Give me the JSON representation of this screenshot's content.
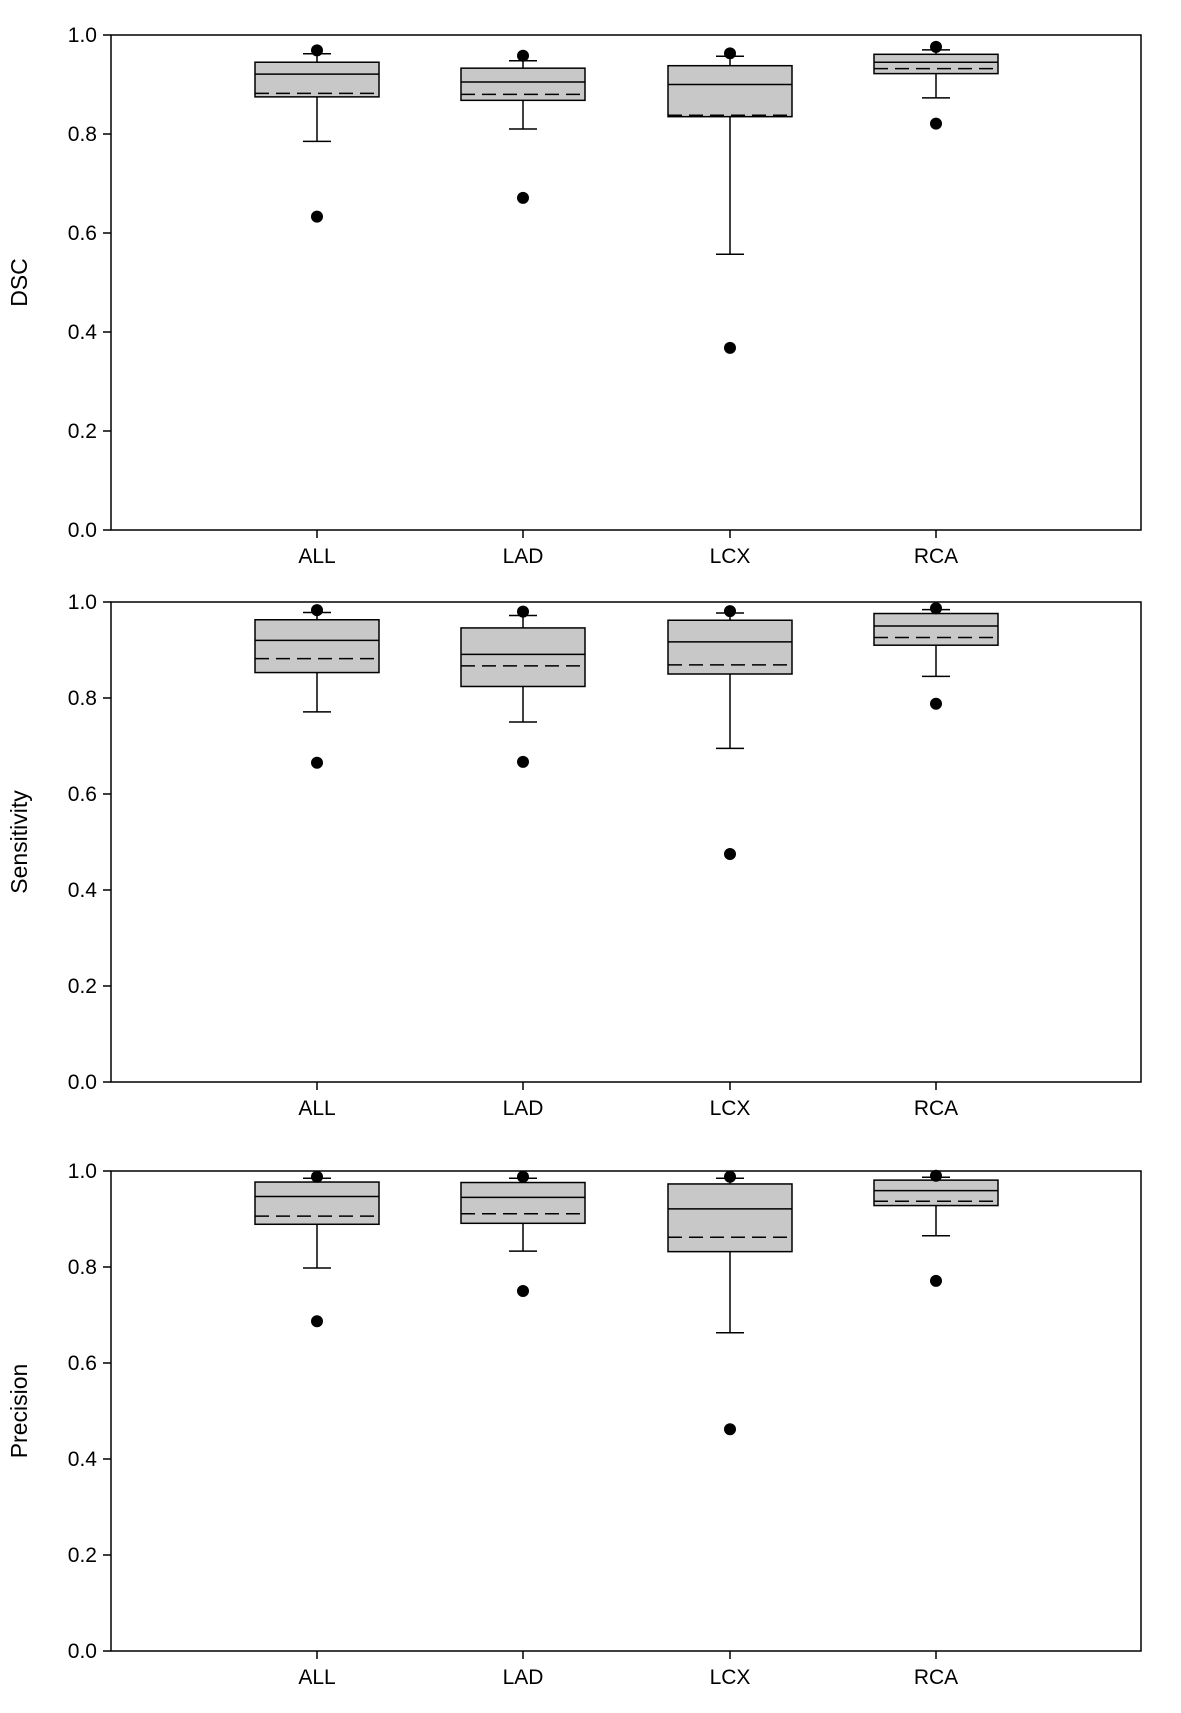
{
  "chart_data": [
    {
      "type": "box",
      "ylabel": "DSC",
      "ylim": [
        0.0,
        1.0
      ],
      "yticks": [
        "0.0",
        "0.2",
        "0.4",
        "0.6",
        "0.8",
        "1.0"
      ],
      "categories": [
        "ALL",
        "LAD",
        "LCX",
        "RCA"
      ],
      "boxes": [
        {
          "category": "ALL",
          "whisker_low": 0.785,
          "q1": 0.875,
          "median": 0.921,
          "mean": 0.882,
          "q3": 0.945,
          "whisker_high": 0.962,
          "outliers": [
            0.633,
            0.969
          ]
        },
        {
          "category": "LAD",
          "whisker_low": 0.81,
          "q1": 0.868,
          "median": 0.905,
          "mean": 0.88,
          "q3": 0.933,
          "whisker_high": 0.948,
          "outliers": [
            0.671,
            0.958
          ]
        },
        {
          "category": "LCX",
          "whisker_low": 0.557,
          "q1": 0.835,
          "median": 0.9,
          "mean": 0.838,
          "q3": 0.938,
          "whisker_high": 0.957,
          "outliers": [
            0.368,
            0.963
          ]
        },
        {
          "category": "RCA",
          "whisker_low": 0.873,
          "q1": 0.922,
          "median": 0.945,
          "mean": 0.932,
          "q3": 0.961,
          "whisker_high": 0.97,
          "outliers": [
            0.821,
            0.976
          ]
        }
      ]
    },
    {
      "type": "box",
      "ylabel": "Sensitivity",
      "ylim": [
        0.0,
        1.0
      ],
      "yticks": [
        "0.0",
        "0.2",
        "0.4",
        "0.6",
        "0.8",
        "1.0"
      ],
      "categories": [
        "ALL",
        "LAD",
        "LCX",
        "RCA"
      ],
      "boxes": [
        {
          "category": "ALL",
          "whisker_low": 0.771,
          "q1": 0.853,
          "median": 0.92,
          "mean": 0.882,
          "q3": 0.963,
          "whisker_high": 0.978,
          "outliers": [
            0.665,
            0.983
          ]
        },
        {
          "category": "LAD",
          "whisker_low": 0.75,
          "q1": 0.824,
          "median": 0.891,
          "mean": 0.867,
          "q3": 0.946,
          "whisker_high": 0.972,
          "outliers": [
            0.667,
            0.98
          ]
        },
        {
          "category": "LCX",
          "whisker_low": 0.695,
          "q1": 0.85,
          "median": 0.917,
          "mean": 0.869,
          "q3": 0.962,
          "whisker_high": 0.977,
          "outliers": [
            0.475,
            0.981
          ]
        },
        {
          "category": "RCA",
          "whisker_low": 0.845,
          "q1": 0.91,
          "median": 0.95,
          "mean": 0.926,
          "q3": 0.976,
          "whisker_high": 0.984,
          "outliers": [
            0.788,
            0.987
          ]
        }
      ]
    },
    {
      "type": "box",
      "ylabel": "Precision",
      "ylim": [
        0.0,
        1.0
      ],
      "yticks": [
        "0.0",
        "0.2",
        "0.4",
        "0.6",
        "0.8",
        "1.0"
      ],
      "categories": [
        "ALL",
        "LAD",
        "LCX",
        "RCA"
      ],
      "boxes": [
        {
          "category": "ALL",
          "whisker_low": 0.798,
          "q1": 0.889,
          "median": 0.947,
          "mean": 0.906,
          "q3": 0.977,
          "whisker_high": 0.985,
          "outliers": [
            0.687,
            0.988
          ]
        },
        {
          "category": "LAD",
          "whisker_low": 0.833,
          "q1": 0.891,
          "median": 0.945,
          "mean": 0.911,
          "q3": 0.976,
          "whisker_high": 0.985,
          "outliers": [
            0.75,
            0.988
          ]
        },
        {
          "category": "LCX",
          "whisker_low": 0.663,
          "q1": 0.832,
          "median": 0.921,
          "mean": 0.862,
          "q3": 0.973,
          "whisker_high": 0.985,
          "outliers": [
            0.462,
            0.988
          ]
        },
        {
          "category": "RCA",
          "whisker_low": 0.865,
          "q1": 0.928,
          "median": 0.959,
          "mean": 0.937,
          "q3": 0.981,
          "whisker_high": 0.987,
          "outliers": [
            0.771,
            0.99
          ]
        }
      ]
    }
  ],
  "colors": {
    "box_fill": "#c8c8c8",
    "stroke": "#000000",
    "background": "#ffffff"
  }
}
